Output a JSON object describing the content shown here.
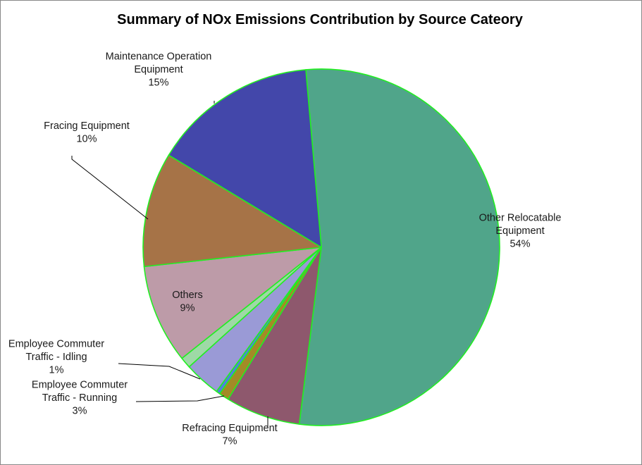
{
  "chart_data": {
    "type": "pie",
    "title": "Summary of NOx Emissions  Contribution by Source Cateory",
    "slices": [
      {
        "name": "Other Relocatable Equipment",
        "label_lines": [
          "Other Relocatable",
          "Equipment"
        ],
        "pct_label": "54%",
        "value": 53.5,
        "color": "#50A58A",
        "labeled": true
      },
      {
        "name": "Refracing Equipment",
        "label_lines": [
          "Refracing Equipment"
        ],
        "pct_label": "7%",
        "value": 6.8,
        "color": "#8E586D",
        "labeled": true
      },
      {
        "name": "",
        "label_lines": [],
        "pct_label": "",
        "value": 0.9,
        "color": "#A38A27",
        "labeled": false
      },
      {
        "name": "",
        "label_lines": [],
        "pct_label": "",
        "value": 0.35,
        "color": "#4F7FE0",
        "labeled": false
      },
      {
        "name": "Employee Commuter Traffic - Running",
        "label_lines": [
          "Employee Commuter",
          "Traffic - Running"
        ],
        "pct_label": "3%",
        "value": 3.3,
        "color": "#9A9AD6",
        "labeled": true
      },
      {
        "name": "Employee Commuter Traffic - Idling",
        "label_lines": [
          "Employee Commuter",
          "Traffic - Idling"
        ],
        "pct_label": "1%",
        "value": 1.0,
        "color": "#9ED9A6",
        "labeled": true
      },
      {
        "name": "Others",
        "label_lines": [
          "Others"
        ],
        "pct_label": "9%",
        "value": 9.0,
        "color": "#BD9BA8",
        "labeled": true
      },
      {
        "name": "Fracing Equipment",
        "label_lines": [
          "Fracing Equipment"
        ],
        "pct_label": "10%",
        "value": 10.4,
        "color": "#A67347",
        "labeled": true
      },
      {
        "name": "Maintenance Operation Equipment",
        "label_lines": [
          "Maintenance Operation",
          "Equipment"
        ],
        "pct_label": "15%",
        "value": 15.0,
        "color": "#4347AA",
        "labeled": true
      }
    ],
    "slice_border_color": "#22EE22",
    "legend": "none"
  }
}
